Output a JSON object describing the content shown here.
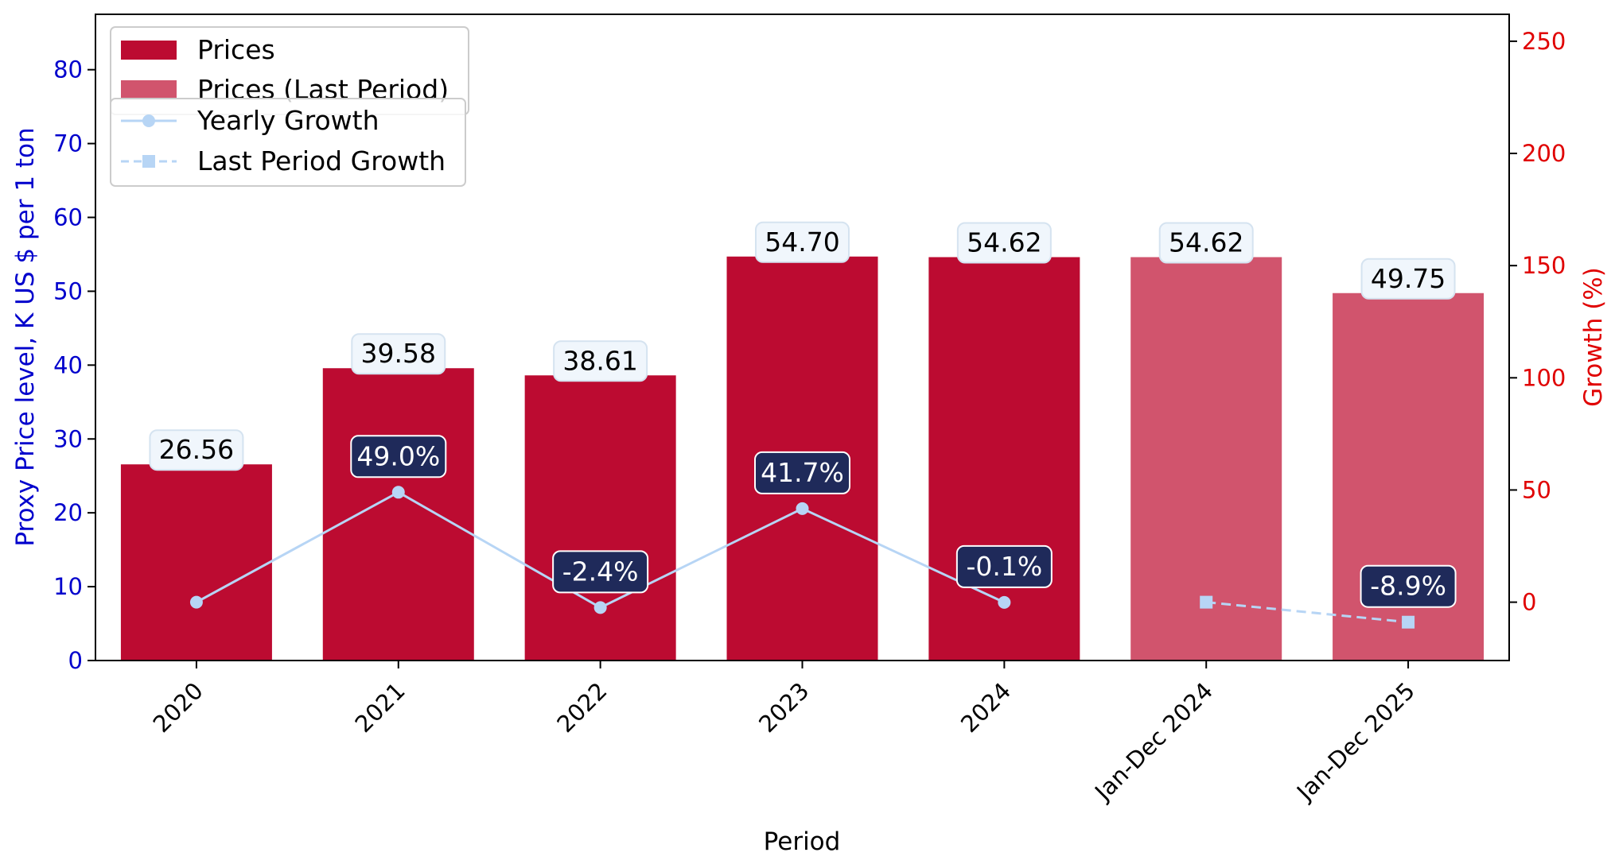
{
  "chart_data": {
    "type": "bar",
    "categories": [
      "2020",
      "2021",
      "2022",
      "2023",
      "2024",
      "Jan-Dec 2024",
      "Jan-Dec 2025"
    ],
    "series": [
      {
        "name": "Prices",
        "kind": "bar",
        "axis": "left",
        "x": [
          "2020",
          "2021",
          "2022",
          "2023",
          "2024"
        ],
        "values": [
          26.56,
          39.58,
          38.61,
          54.7,
          54.62
        ],
        "color": "#BC0B31"
      },
      {
        "name": "Prices (Last Period)",
        "kind": "bar",
        "axis": "left",
        "x": [
          "Jan-Dec 2024",
          "Jan-Dec 2025"
        ],
        "values": [
          54.62,
          49.75
        ],
        "color": "#D1546D"
      },
      {
        "name": "Yearly Growth",
        "kind": "line",
        "axis": "right",
        "marker": "circle",
        "x": [
          "2020",
          "2021",
          "2022",
          "2023",
          "2024"
        ],
        "values": [
          0.0,
          49.0,
          -2.4,
          41.7,
          -0.1
        ],
        "color": "#B7D5F5"
      },
      {
        "name": "Last Period Growth",
        "kind": "line",
        "axis": "right",
        "marker": "square",
        "dashed": true,
        "x": [
          "Jan-Dec 2024",
          "Jan-Dec 2025"
        ],
        "values": [
          0.0,
          -8.9
        ],
        "color": "#B7D5F5"
      }
    ],
    "price_labels": [
      "26.56",
      "39.58",
      "38.61",
      "54.70",
      "54.62",
      "54.62",
      "49.75"
    ],
    "growth_labels": [
      {
        "x": "2021",
        "value": 49.0,
        "text": "49.0%"
      },
      {
        "x": "2022",
        "value": -2.4,
        "text": "-2.4%"
      },
      {
        "x": "2023",
        "value": 41.7,
        "text": "41.7%"
      },
      {
        "x": "2024",
        "value": -0.1,
        "text": "-0.1%"
      },
      {
        "x": "Jan-Dec 2025",
        "value": -8.9,
        "text": "-8.9%"
      }
    ],
    "xlabel": "Period",
    "ylabel": "Proxy Price level, K US $ per 1 ton",
    "y2label": "Growth (%)",
    "ylim": [
      0,
      87.5
    ],
    "y2lim": [
      -26,
      262
    ],
    "yticks": [
      0,
      10,
      20,
      30,
      40,
      50,
      60,
      70,
      80
    ],
    "y2ticks": [
      0,
      50,
      100,
      150,
      200,
      250
    ],
    "grid": false,
    "legend_placement": "top-left",
    "colors": {
      "left_axis": "#0000CC",
      "right_axis": "#E00000",
      "label_box": "#1F2A5A",
      "price_box": "#F0F6FC"
    }
  }
}
